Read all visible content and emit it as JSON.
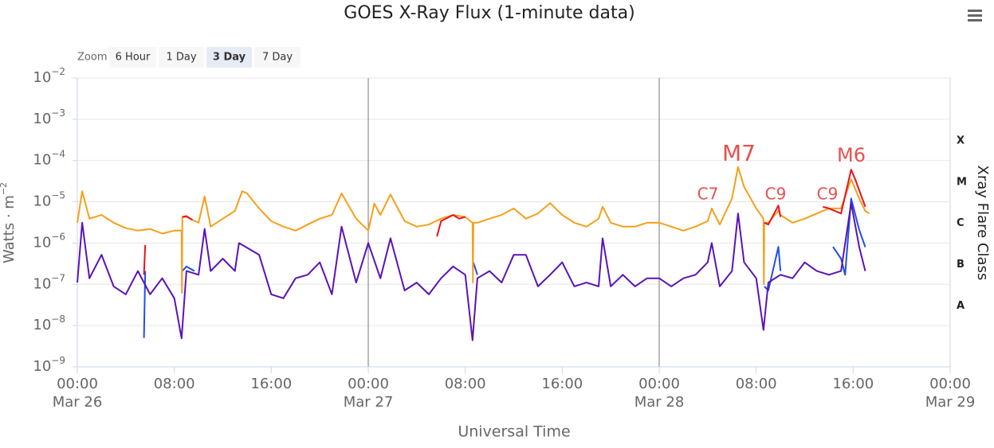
{
  "chart_data": {
    "type": "line",
    "title": "GOES X-Ray Flux (1-minute data)",
    "x_label": "Universal Time",
    "y_label": [
      "Watts · m",
      "−2"
    ],
    "y2_label": "Xray Flare Class",
    "zoom": {
      "label": "Zoom",
      "buttons": [
        "6 Hour",
        "1 Day",
        "3 Day",
        "7 Day"
      ],
      "selected": 2
    },
    "log_y": true,
    "grid": true,
    "xlim": [
      "Mar 26 00:00",
      "Mar 29 00:00"
    ],
    "xticks": [
      {
        "value": "Mar 26 00:00",
        "label": [
          "00:00",
          "Mar 26"
        ]
      },
      {
        "value": "Mar 26 08:00",
        "label": [
          "08:00"
        ]
      },
      {
        "value": "Mar 26 16:00",
        "label": [
          "16:00"
        ]
      },
      {
        "value": "Mar 27 00:00",
        "label": [
          "00:00",
          "Mar 27"
        ]
      },
      {
        "value": "Mar 27 08:00",
        "label": [
          "08:00"
        ]
      },
      {
        "value": "Mar 27 16:00",
        "label": [
          "16:00"
        ]
      },
      {
        "value": "Mar 28 00:00",
        "label": [
          "00:00",
          "Mar 28"
        ]
      },
      {
        "value": "Mar 28 08:00",
        "label": [
          "08:00"
        ]
      },
      {
        "value": "Mar 28 16:00",
        "label": [
          "16:00"
        ]
      },
      {
        "value": "Mar 29 00:00",
        "label": [
          "00:00",
          "Mar 29"
        ]
      }
    ],
    "ylim": [
      1e-09,
      0.01
    ],
    "yticks": [
      {
        "value": 0.01,
        "label": [
          "10",
          "−2"
        ]
      },
      {
        "value": 0.001,
        "label": [
          "10",
          "−3"
        ]
      },
      {
        "value": 0.0001,
        "label": [
          "10",
          "−4"
        ]
      },
      {
        "value": 1e-05,
        "label": [
          "10",
          "−5"
        ]
      },
      {
        "value": 1e-06,
        "label": [
          "10",
          "−6"
        ]
      },
      {
        "value": 1e-07,
        "label": [
          "10",
          "−7"
        ]
      },
      {
        "value": 1e-08,
        "label": [
          "10",
          "−8"
        ]
      },
      {
        "value": 1e-09,
        "label": [
          "10",
          "−9"
        ]
      }
    ],
    "y2lim": [
      1e-09,
      0.01
    ],
    "y2ticks": [
      {
        "value": 0.0003,
        "label": "X"
      },
      {
        "value": 3e-05,
        "label": "M"
      },
      {
        "value": 3e-06,
        "label": "C"
      },
      {
        "value": 3e-07,
        "label": "B"
      },
      {
        "value": 3e-08,
        "label": "A"
      }
    ],
    "annotations": [
      "M7",
      "C7",
      "C9",
      "C9",
      "M6"
    ],
    "series": [
      {
        "color": "#1f4fe8",
        "x": [
          "Mar 26 05:30",
          "Mar 26 05:36",
          "Mar 26 06:00",
          "Mar 26 08:40",
          "Mar 26 09:00",
          "Mar 26 09:40",
          "Mar 27 06:00",
          "Mar 27 08:40",
          "Mar 27 09:00",
          "Mar 27 12:00",
          "Mar 28 08:40",
          "Mar 28 09:00",
          "Mar 28 09:50",
          "Mar 28 10:00",
          "Mar 28 12:00",
          "Mar 28 14:20",
          "Mar 28 15:00",
          "Mar 28 15:20",
          "Mar 28 15:50",
          "Mar 28 16:30",
          "Mar 28 17:00"
        ],
        "values": [
          5e-09,
          2.1e-07,
          null,
          2.1e-07,
          2.7e-07,
          2.1e-07,
          null,
          3.4e-07,
          1.7e-07,
          null,
          8.9e-08,
          7.1e-08,
          8.1e-07,
          2.1e-07,
          null,
          8.1e-07,
          4.2e-07,
          1.7e-07,
          1.2e-05,
          2.1e-06,
          8e-07
        ]
      },
      {
        "color": "#5b12b8",
        "x": [
          "Mar 26 00:00",
          "Mar 26 00:24",
          "Mar 26 01:00",
          "Mar 26 02:00",
          "Mar 26 03:00",
          "Mar 26 04:00",
          "Mar 26 05:00",
          "Mar 26 06:00",
          "Mar 26 07:00",
          "Mar 26 08:00",
          "Mar 26 08:36",
          "Mar 26 09:00",
          "Mar 26 10:00",
          "Mar 26 10:30",
          "Mar 26 11:00",
          "Mar 26 12:00",
          "Mar 26 13:00",
          "Mar 26 13:20",
          "Mar 26 15:00",
          "Mar 26 16:00",
          "Mar 26 17:00",
          "Mar 26 18:00",
          "Mar 26 19:00",
          "Mar 26 20:00",
          "Mar 26 21:00",
          "Mar 26 21:48",
          "Mar 26 23:00",
          "Mar 27 00:00",
          "Mar 27 01:00",
          "Mar 27 01:50",
          "Mar 27 03:00",
          "Mar 27 04:00",
          "Mar 27 05:00",
          "Mar 27 06:00",
          "Mar 27 07:00",
          "Mar 27 08:00",
          "Mar 27 08:36",
          "Mar 27 09:00",
          "Mar 27 10:00",
          "Mar 27 11:00",
          "Mar 27 12:00",
          "Mar 27 13:00",
          "Mar 27 14:00",
          "Mar 27 15:00",
          "Mar 27 16:00",
          "Mar 27 17:00",
          "Mar 27 18:00",
          "Mar 27 19:00",
          "Mar 27 19:20",
          "Mar 27 20:00",
          "Mar 27 21:00",
          "Mar 27 22:00",
          "Mar 27 23:00",
          "Mar 28 00:00",
          "Mar 28 01:00",
          "Mar 28 02:00",
          "Mar 28 03:00",
          "Mar 28 04:00",
          "Mar 28 04:20",
          "Mar 28 05:00",
          "Mar 28 06:00",
          "Mar 28 06:30",
          "Mar 28 07:00",
          "Mar 28 08:00",
          "Mar 28 08:36",
          "Mar 28 09:00",
          "Mar 28 10:00",
          "Mar 28 11:00",
          "Mar 28 12:00",
          "Mar 28 13:00",
          "Mar 28 14:00",
          "Mar 28 15:00",
          "Mar 28 15:50",
          "Mar 28 16:30",
          "Mar 28 17:00"
        ],
        "values": [
          1.1e-07,
          3.1e-06,
          1.4e-07,
          5.2e-07,
          8.9e-08,
          5.7e-08,
          2.1e-07,
          5.7e-08,
          1.4e-07,
          4.6e-08,
          4.9e-09,
          2.1e-07,
          1.7e-07,
          2.2e-06,
          2.1e-07,
          4.2e-07,
          2.1e-07,
          1e-06,
          5.2e-07,
          5.7e-08,
          4.6e-08,
          1.4e-07,
          1.7e-07,
          3.4e-07,
          5.7e-08,
          2.5e-06,
          1.1e-07,
          1e-06,
          1.4e-07,
          1.3e-06,
          7.1e-08,
          1.1e-07,
          5.7e-08,
          1.4e-07,
          2.7e-07,
          1.7e-07,
          4.4e-09,
          1.4e-07,
          2.1e-07,
          1.1e-07,
          5.2e-07,
          5.2e-07,
          8.9e-08,
          1.7e-07,
          3.4e-07,
          8.9e-08,
          1.1e-07,
          8.9e-08,
          1.3e-06,
          8.9e-08,
          1.7e-07,
          8.9e-08,
          1.4e-07,
          1.4e-07,
          8.9e-08,
          1.4e-07,
          1.7e-07,
          3.4e-07,
          1e-06,
          8.9e-08,
          2.1e-07,
          5.2e-06,
          3.4e-07,
          1.4e-07,
          7.8e-09,
          1.1e-07,
          1.7e-07,
          1.4e-07,
          3.4e-07,
          2.1e-07,
          1.7e-07,
          2.1e-07,
          9.3e-06,
          8.1e-07,
          2.1e-07
        ]
      },
      {
        "color": "#f5a01a",
        "x": [
          "Mar 26 00:00",
          "Mar 26 00:24",
          "Mar 26 01:00",
          "Mar 26 02:00",
          "Mar 26 03:00",
          "Mar 26 04:00",
          "Mar 26 05:00",
          "Mar 26 06:00",
          "Mar 26 07:00",
          "Mar 26 08:00",
          "Mar 26 08:36",
          "Mar 26 08:38",
          "Mar 26 08:40",
          "Mar 26 09:00",
          "Mar 26 10:00",
          "Mar 26 10:30",
          "Mar 26 11:00",
          "Mar 26 12:00",
          "Mar 26 13:00",
          "Mar 26 13:36",
          "Mar 26 14:00",
          "Mar 26 15:00",
          "Mar 26 16:00",
          "Mar 26 17:00",
          "Mar 26 18:00",
          "Mar 26 19:00",
          "Mar 26 20:00",
          "Mar 26 21:00",
          "Mar 26 21:48",
          "Mar 26 23:00",
          "Mar 27 00:00",
          "Mar 27 00:30",
          "Mar 27 01:00",
          "Mar 27 01:50",
          "Mar 27 03:00",
          "Mar 27 04:00",
          "Mar 27 05:00",
          "Mar 27 06:00",
          "Mar 27 07:00",
          "Mar 27 08:00",
          "Mar 27 08:36",
          "Mar 27 08:38",
          "Mar 27 08:40",
          "Mar 27 09:00",
          "Mar 27 10:00",
          "Mar 27 11:00",
          "Mar 27 12:00",
          "Mar 27 13:00",
          "Mar 27 14:00",
          "Mar 27 15:00",
          "Mar 27 16:00",
          "Mar 27 17:00",
          "Mar 27 18:00",
          "Mar 27 19:00",
          "Mar 27 19:20",
          "Mar 27 20:00",
          "Mar 27 21:00",
          "Mar 27 22:00",
          "Mar 27 23:00",
          "Mar 28 00:00",
          "Mar 28 01:00",
          "Mar 28 02:00",
          "Mar 28 03:00",
          "Mar 28 04:00",
          "Mar 28 04:20",
          "Mar 28 05:00",
          "Mar 28 06:00",
          "Mar 28 06:30",
          "Mar 28 07:00",
          "Mar 28 08:00",
          "Mar 28 08:36",
          "Mar 28 08:38",
          "Mar 28 08:40",
          "Mar 28 09:00",
          "Mar 28 09:50",
          "Mar 28 10:00",
          "Mar 28 11:00",
          "Mar 28 12:00",
          "Mar 28 13:00",
          "Mar 28 14:00",
          "Mar 28 15:00",
          "Mar 28 15:50",
          "Mar 28 16:30",
          "Mar 28 17:00",
          "Mar 28 17:20"
        ],
        "values": [
          3.1e-06,
          1.8e-05,
          3.9e-06,
          4.8e-06,
          3.1e-06,
          2.3e-06,
          2e-06,
          2.2e-06,
          1.7e-06,
          2e-06,
          2e-06,
          6.2e-08,
          4.3e-06,
          4.3e-06,
          3.1e-06,
          1.35e-05,
          2.5e-06,
          3.9e-06,
          6e-06,
          1.8e-05,
          1.6e-05,
          6.9e-06,
          3.4e-06,
          2.5e-06,
          2e-06,
          2.8e-06,
          3.9e-06,
          4.8e-06,
          1.6e-05,
          3.9e-06,
          2e-06,
          9e-06,
          4.8e-06,
          1.5e-05,
          3.4e-06,
          2.5e-06,
          2.8e-06,
          3.9e-06,
          4.8e-06,
          4.3e-06,
          3.1e-06,
          1.1e-07,
          3.1e-06,
          3.1e-06,
          3.9e-06,
          4.8e-06,
          6.9e-06,
          3.9e-06,
          5.2e-06,
          9.3e-06,
          4.8e-06,
          3.1e-06,
          2.5e-06,
          3.9e-06,
          7.6e-06,
          3.1e-06,
          2.5e-06,
          2.5e-06,
          3.1e-06,
          3.1e-06,
          2.5e-06,
          2e-06,
          2.5e-06,
          3.4e-06,
          6.9e-06,
          2.8e-06,
          1.2e-05,
          7e-05,
          2.3e-05,
          6.9e-06,
          3.9e-06,
          1e-07,
          3.1e-06,
          3.1e-06,
          6e-06,
          4.8e-06,
          3.1e-06,
          3.9e-06,
          5.2e-06,
          6.9e-06,
          6.9e-06,
          3.5e-05,
          1.2e-05,
          6e-06,
          5.2e-06
        ]
      },
      {
        "color": "#e8121b",
        "x": [
          "Mar 26 05:30",
          "Mar 26 05:36",
          "Mar 26 06:00",
          "Mar 26 08:40",
          "Mar 26 09:00",
          "Mar 26 09:30",
          "Mar 27 00:00",
          "Mar 27 05:40",
          "Mar 27 06:00",
          "Mar 27 07:00",
          "Mar 27 07:30",
          "Mar 27 08:00",
          "Mar 28 00:00",
          "Mar 28 08:40",
          "Mar 28 09:00",
          "Mar 28 09:50",
          "Mar 28 10:00",
          "Mar 28 12:00",
          "Mar 28 13:30",
          "Mar 28 14:00",
          "Mar 28 15:00",
          "Mar 28 15:50",
          "Mar 28 16:10",
          "Mar 28 17:00"
        ],
        "values": [
          1.7e-07,
          9e-07,
          null,
          4.3e-06,
          4.5e-06,
          3.6e-06,
          null,
          1.45e-06,
          3.4e-06,
          4.8e-06,
          3.9e-06,
          4.3e-06,
          null,
          3.1e-06,
          2.8e-06,
          8.1e-06,
          4.3e-06,
          null,
          7.6e-06,
          6.9e-06,
          5.2e-06,
          6e-05,
          3.5e-05,
          7.6e-06
        ]
      }
    ]
  }
}
